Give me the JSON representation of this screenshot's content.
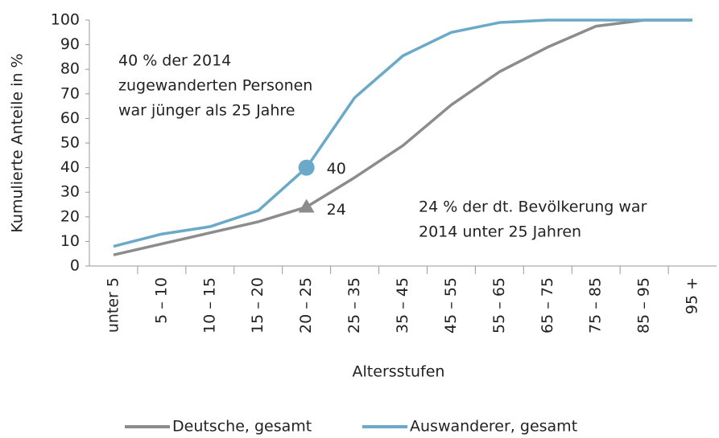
{
  "chart_data": {
    "type": "line",
    "y_label": "Kumulierte Anteile in %",
    "x_label": "Altersstufen",
    "categories": [
      "unter 5",
      "5 – 10",
      "10 – 15",
      "15 – 20",
      "20 – 25",
      "25 – 35",
      "35 – 45",
      "45 – 55",
      "55 – 65",
      "65 – 75",
      "75 – 85",
      "85 – 95",
      "95 +"
    ],
    "series": [
      {
        "name": "Deutsche, gesamt",
        "color": "#8c8c8c",
        "marker": "triangle",
        "values": [
          4.5,
          9,
          13.5,
          18,
          24,
          36,
          49,
          65.5,
          79,
          89,
          97.5,
          100,
          100
        ]
      },
      {
        "name": "Auswanderer, gesamt",
        "color": "#6aaac8",
        "marker": "circle",
        "values": [
          8,
          13,
          16,
          22.5,
          40,
          68.5,
          85.5,
          95,
          99,
          100,
          100,
          100,
          100
        ]
      }
    ],
    "marked_category": "20 – 25",
    "ylim": [
      0,
      100
    ],
    "yticks": [
      0,
      10,
      20,
      30,
      40,
      50,
      60,
      70,
      80,
      90,
      100
    ],
    "annotations": [
      [
        "40 % der 2014",
        "zugewanderten Personen",
        "war jünger als 25 Jahre"
      ],
      [
        "24 % der dt. Bevölkerung war",
        "2014 unter 25 Jahren"
      ]
    ],
    "legend": "bottom"
  }
}
